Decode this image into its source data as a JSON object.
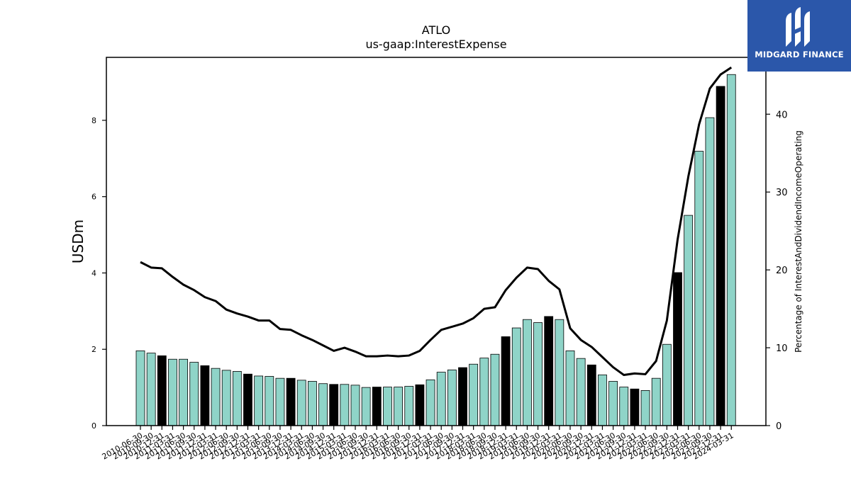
{
  "chart_data": {
    "type": "bar",
    "title": "ATLO",
    "subtitle": "us-gaap:InterestExpense",
    "ylabel": "USDm",
    "y2label": "Percentage of InterestAndDividendIncomeOperating",
    "ylim": [
      0,
      9.65
    ],
    "y2lim": [
      0,
      47.3
    ],
    "yticks": [
      "0",
      "2",
      "4",
      "6",
      "8"
    ],
    "y2ticks": [
      "0",
      "10",
      "20",
      "30",
      "40"
    ],
    "grid": false,
    "categories": [
      "2010-06-30",
      "2010-09-30",
      "2010-12-31",
      "2011-03-31",
      "2011-06-30",
      "2011-09-30",
      "2011-12-31",
      "2012-03-31",
      "2012-06-30",
      "2012-09-30",
      "2012-12-31",
      "2013-03-31",
      "2013-06-30",
      "2013-09-30",
      "2013-12-31",
      "2014-03-31",
      "2014-06-30",
      "2014-09-30",
      "2014-12-31",
      "2015-03-31",
      "2015-06-30",
      "2015-09-30",
      "2015-12-31",
      "2016-03-31",
      "2016-06-30",
      "2016-09-30",
      "2016-12-31",
      "2017-03-31",
      "2017-06-30",
      "2017-09-30",
      "2017-12-31",
      "2018-03-31",
      "2018-06-30",
      "2018-09-30",
      "2018-12-31",
      "2019-03-31",
      "2019-06-30",
      "2019-09-30",
      "2019-12-31",
      "2020-03-31",
      "2020-06-30",
      "2020-09-30",
      "2020-12-31",
      "2021-03-31",
      "2021-06-30",
      "2021-09-30",
      "2021-12-31",
      "2022-03-31",
      "2022-06-30",
      "2022-09-30",
      "2022-12-31",
      "2023-03-31",
      "2023-06-30",
      "2023-09-30",
      "2023-12-31",
      "2024-03-31"
    ],
    "values": [
      1.96,
      1.9,
      1.83,
      1.74,
      1.74,
      1.66,
      1.57,
      1.5,
      1.45,
      1.42,
      1.35,
      1.3,
      1.29,
      1.24,
      1.24,
      1.19,
      1.16,
      1.1,
      1.08,
      1.08,
      1.06,
      1.0,
      1.01,
      1.01,
      1.01,
      1.03,
      1.07,
      1.2,
      1.4,
      1.46,
      1.52,
      1.61,
      1.77,
      1.87,
      2.33,
      2.56,
      2.78,
      2.7,
      2.86,
      2.78,
      1.96,
      1.76,
      1.59,
      1.33,
      1.16,
      1.01,
      0.96,
      0.92,
      1.24,
      2.13,
      4.01,
      5.51,
      7.19,
      8.07,
      8.89,
      9.2
    ],
    "highlight_color": "#000000",
    "bar_color": "#8fd4c8",
    "line_color": "#000000",
    "highlight_months": [
      "12"
    ],
    "percentage": [
      21.0,
      20.3,
      20.2,
      19.1,
      18.1,
      17.4,
      16.5,
      16.0,
      14.9,
      14.4,
      14.0,
      13.5,
      13.5,
      12.4,
      12.3,
      11.6,
      11.0,
      10.3,
      9.6,
      10.0,
      9.5,
      8.9,
      8.9,
      9.0,
      8.9,
      9.0,
      9.6,
      11.0,
      12.3,
      12.7,
      13.1,
      13.8,
      15.0,
      15.2,
      17.4,
      19.0,
      20.3,
      20.1,
      18.6,
      17.5,
      12.5,
      11.0,
      10.1,
      8.8,
      7.5,
      6.5,
      6.7,
      6.6,
      8.3,
      13.5,
      23.9,
      32.0,
      38.7,
      43.3,
      45.1,
      46.0
    ]
  },
  "logo": {
    "text": "MIDGARD FINANCE",
    "bg_color": "#2b57aa"
  }
}
